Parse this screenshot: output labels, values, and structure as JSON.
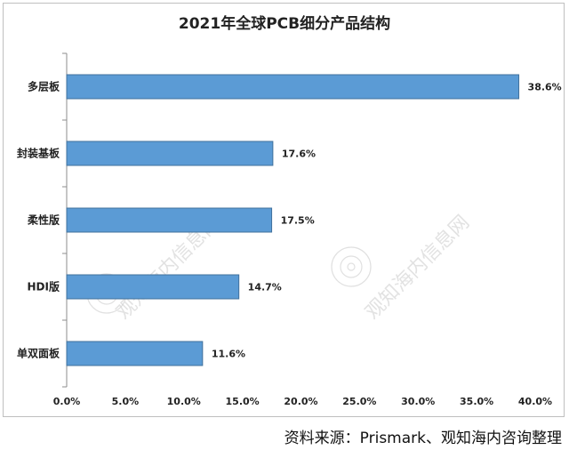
{
  "chart_data": {
    "type": "bar",
    "orientation": "horizontal",
    "title": "2021年全球PCB细分产品结构",
    "categories": [
      "多层板",
      "封装基板",
      "柔性版",
      "HDI版",
      "单双面板"
    ],
    "values": [
      38.6,
      17.6,
      17.5,
      14.7,
      11.6
    ],
    "value_labels": [
      "38.6%",
      "17.6%",
      "17.5%",
      "14.7%",
      "11.6%"
    ],
    "xlim": [
      0,
      40
    ],
    "x_ticks": [
      "0.0%",
      "5.0%",
      "10.0%",
      "15.0%",
      "20.0%",
      "25.0%",
      "30.0%",
      "35.0%",
      "40.0%"
    ],
    "x_tick_values": [
      0,
      5,
      10,
      15,
      20,
      25,
      30,
      35,
      40
    ],
    "grid": false,
    "bar_color": "#5b9bd5",
    "bar_edge_color": "#41719c"
  },
  "watermark": "观知海内信息网",
  "source": "资料来源：Prismark、观知海内咨询整理"
}
